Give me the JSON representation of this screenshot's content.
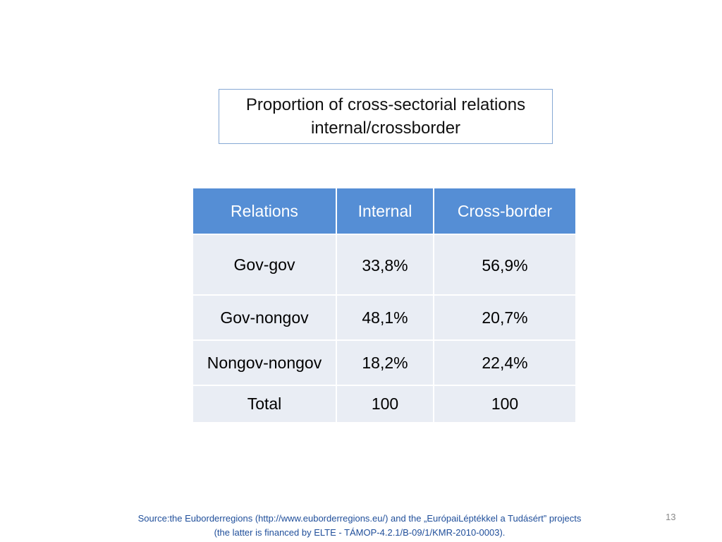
{
  "title_line1": "Proportion of cross-sectorial relations",
  "title_line2": "internal/crossborder",
  "table": {
    "headers": [
      "Relations",
      "Internal",
      "Cross-border"
    ],
    "rows": [
      [
        "Gov-gov",
        "33,8%",
        "56,9%"
      ],
      [
        "Gov-nongov",
        "48,1%",
        "20,7%"
      ],
      [
        "Nongov-nongov",
        "18,2%",
        "22,4%"
      ],
      [
        "Total",
        "100",
        "100"
      ]
    ]
  },
  "source_line1": "Source:the Euborderregions (http://www.euborderregions.eu/) and the „EurópaiLéptékkel a Tudásért” projects",
  "source_line2": "(the latter is financed by ELTE - TÁMOP-4.2.1/B-09/1/KMR-2010-0003).",
  "page_number": "13",
  "colors": {
    "header": "#558ed5",
    "body": "#e9edf4",
    "source_text": "#1f4e9a"
  }
}
